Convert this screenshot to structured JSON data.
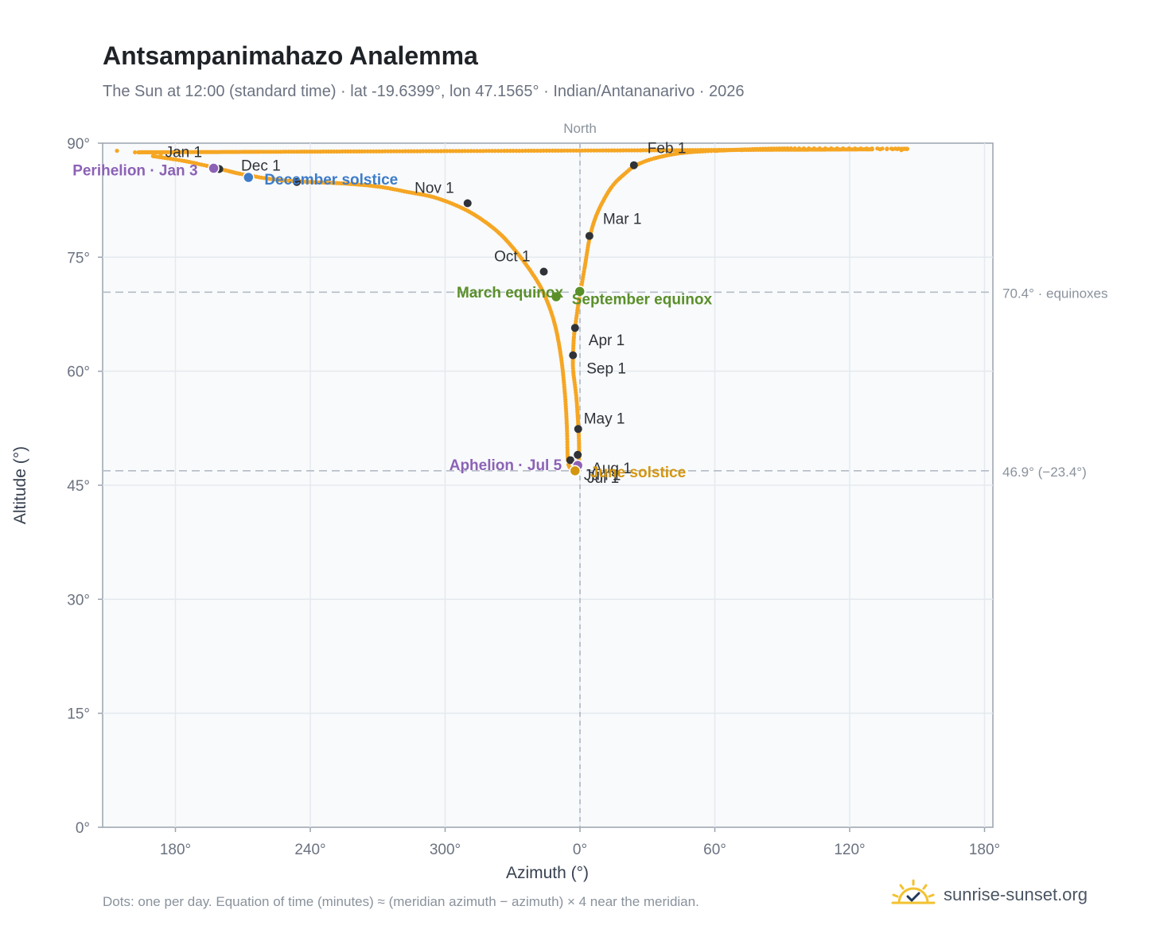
{
  "header": {
    "title": "Antsampanimahazo Analemma",
    "subtitle": "The Sun at 12:00 (standard time) · lat -19.6399°, lon 47.1565° · Indian/Antananarivo · 2026"
  },
  "footer": {
    "note": "Dots: one per day. Equation of time (minutes) ≈ (meridian azimuth − azimuth) × 4 near the meridian.",
    "brand": "sunrise-sunset.org"
  },
  "colors": {
    "curve": "#f5a623",
    "month_marker": "#2f3338",
    "equinox": "#5a8f29",
    "december_solstice": "#3d7cc9",
    "june_solstice": "#d4960e",
    "perihelion_aphelion": "#8c62b5",
    "grid": "#e5e9ee",
    "axis": "#9aa3ad",
    "plot_bg": "#f8fafc"
  },
  "chart_data": {
    "type": "scatter",
    "title": "Antsampanimahazo Analemma",
    "xlabel": "Azimuth (°)",
    "ylabel": "Altitude (°)",
    "xlim": [
      147,
      180
    ],
    "ylim": [
      0,
      90
    ],
    "x_axis_note": "azimuth measured from north; axis runs 147°→360°/0°→180°",
    "x_ticks": [
      {
        "az": 180,
        "label": "180°"
      },
      {
        "az": 240,
        "label": "240°"
      },
      {
        "az": 300,
        "label": "300°"
      },
      {
        "az": 0,
        "label": "0°"
      },
      {
        "az": 60,
        "label": "60°"
      },
      {
        "az": 120,
        "label": "120°"
      },
      {
        "az": 180,
        "label": "180°",
        "end": true
      }
    ],
    "y_ticks": [
      0,
      15,
      30,
      45,
      60,
      75,
      90
    ],
    "y_tick_labels": [
      "0°",
      "15°",
      "30°",
      "45°",
      "60°",
      "75°",
      "90°"
    ],
    "meridian_label": "North",
    "grid": true,
    "reference_lines": [
      {
        "altitude": 70.4,
        "label": "70.4° · equinoxes"
      },
      {
        "altitude": 46.9,
        "label": "46.9° (−23.4°)"
      }
    ],
    "analemma_anchors": [
      {
        "az": 170.0,
        "alt": 88.3
      },
      {
        "az": 185.0,
        "alt": 87.6
      },
      {
        "az": 200.0,
        "alt": 86.6
      },
      {
        "az": 210.0,
        "alt": 85.9
      },
      {
        "az": 225.0,
        "alt": 85.2
      },
      {
        "az": 240.0,
        "alt": 84.9
      },
      {
        "az": 255.0,
        "alt": 84.7
      },
      {
        "az": 270.0,
        "alt": 84.3
      },
      {
        "az": 283.0,
        "alt": 83.6
      },
      {
        "az": 296.0,
        "alt": 82.8
      },
      {
        "az": 310.0,
        "alt": 81.1
      },
      {
        "az": 322.0,
        "alt": 78.7
      },
      {
        "az": 330.0,
        "alt": 76.3
      },
      {
        "az": 338.0,
        "alt": 73.2
      },
      {
        "az": 343.8,
        "alt": 70.3
      },
      {
        "az": 348.5,
        "alt": 66.5
      },
      {
        "az": 351.5,
        "alt": 62.0
      },
      {
        "az": 353.3,
        "alt": 57.0
      },
      {
        "az": 354.2,
        "alt": 52.5
      },
      {
        "az": 354.6,
        "alt": 48.3
      },
      {
        "az": 355.6,
        "alt": 47.3
      },
      {
        "az": 357.6,
        "alt": 46.95
      },
      {
        "az": 359.2,
        "alt": 47.5
      },
      {
        "az": 359.6,
        "alt": 49.5
      },
      {
        "az": 359.3,
        "alt": 52.5
      },
      {
        "az": 358.4,
        "alt": 56.5
      },
      {
        "az": 357.0,
        "alt": 60.0
      },
      {
        "az": 356.9,
        "alt": 62.1
      },
      {
        "az": 357.3,
        "alt": 64.5
      },
      {
        "az": 357.8,
        "alt": 65.7
      },
      {
        "az": 359.0,
        "alt": 68.3
      },
      {
        "az": 0.3,
        "alt": 70.6
      },
      {
        "az": 2.0,
        "alt": 73.5
      },
      {
        "az": 4.5,
        "alt": 77.8
      },
      {
        "az": 8.0,
        "alt": 81.0
      },
      {
        "az": 14.0,
        "alt": 84.2
      },
      {
        "az": 20.0,
        "alt": 86.0
      },
      {
        "az": 25.0,
        "alt": 87.1
      },
      {
        "az": 33.0,
        "alt": 88.0
      },
      {
        "az": 45.0,
        "alt": 88.7
      },
      {
        "az": 60.0,
        "alt": 89.0
      },
      {
        "az": 90.0,
        "alt": 89.3
      },
      {
        "az": 130.0,
        "alt": 89.2
      },
      {
        "az": 163.0,
        "alt": 88.8
      }
    ],
    "isolated_dots": [
      {
        "az": 170.5,
        "alt": 88.7
      },
      {
        "az": 173.5,
        "alt": 88.6
      },
      {
        "az": 46.0,
        "alt": 88.8
      },
      {
        "az": 50.0,
        "alt": 88.9
      },
      {
        "az": 60.0,
        "alt": 89.0
      },
      {
        "az": 72.0,
        "alt": 89.1
      },
      {
        "az": 89.0,
        "alt": 89.2
      },
      {
        "az": 109.0,
        "alt": 89.2
      },
      {
        "az": 128.0,
        "alt": 89.2
      },
      {
        "az": 143.0,
        "alt": 89.1
      },
      {
        "az": 154.0,
        "alt": 89.0
      },
      {
        "az": 162.0,
        "alt": 88.8
      }
    ],
    "month_markers": [
      {
        "label": "Jan 1",
        "az": 199.5,
        "alt": 86.6
      },
      {
        "label": "Feb 1",
        "az": 24.0,
        "alt": 87.1
      },
      {
        "label": "Mar 1",
        "az": 4.2,
        "alt": 77.8
      },
      {
        "label": "Apr 1",
        "az": 357.8,
        "alt": 65.7
      },
      {
        "label": "May 1",
        "az": 359.2,
        "alt": 52.4
      },
      {
        "label": "Jun 1",
        "az": 355.7,
        "alt": 48.3
      },
      {
        "label": "Jul 1",
        "az": 358.6,
        "alt": 47.0
      },
      {
        "label": "Aug 1",
        "az": 359.0,
        "alt": 49.0
      },
      {
        "label": "Sep 1",
        "az": 356.9,
        "alt": 62.1
      },
      {
        "label": "Oct 1",
        "az": 343.9,
        "alt": 73.1
      },
      {
        "label": "Nov 1",
        "az": 310.0,
        "alt": 82.1
      },
      {
        "label": "Dec 1",
        "az": 234.0,
        "alt": 84.9
      }
    ],
    "events": [
      {
        "label": "Perihelion · Jan 3",
        "az": 197.0,
        "alt": 86.7,
        "color_key": "perihelion_aphelion"
      },
      {
        "label": "December solstice",
        "az": 212.5,
        "alt": 85.5,
        "color_key": "december_solstice"
      },
      {
        "label": "March equinox",
        "az": 349.4,
        "alt": 69.8,
        "color_key": "equinox"
      },
      {
        "label": "September equinox",
        "az": 359.9,
        "alt": 70.5,
        "color_key": "equinox"
      },
      {
        "label": "Aphelion · Jul 5",
        "az": 359.0,
        "alt": 47.6,
        "color_key": "perihelion_aphelion"
      },
      {
        "label": "June solstice",
        "az": 357.8,
        "alt": 46.9,
        "color_key": "june_solstice"
      }
    ]
  }
}
